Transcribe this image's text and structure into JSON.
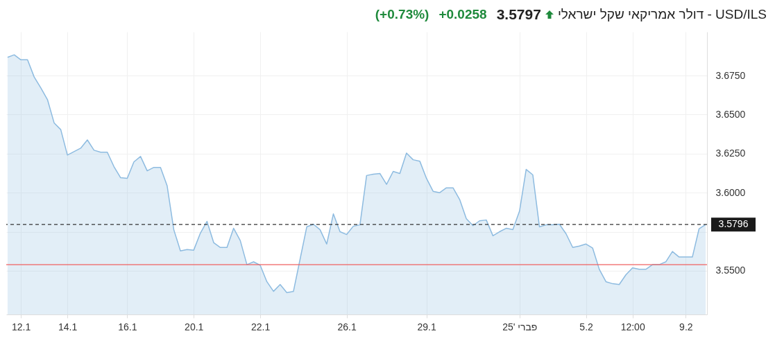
{
  "chart_data": {
    "type": "area",
    "title": "USD/ILS - דולר אמריקאי שקל ישראלי",
    "annotations": [
      "3.5797",
      "+0.0258",
      "(+0.73%)"
    ],
    "categories": [
      null,
      null,
      "12.1",
      null,
      null,
      null,
      null,
      null,
      null,
      "14.1",
      null,
      null,
      null,
      null,
      null,
      null,
      null,
      null,
      "16.1",
      null,
      null,
      null,
      null,
      null,
      null,
      null,
      null,
      null,
      "20.1",
      null,
      null,
      null,
      null,
      null,
      null,
      null,
      null,
      null,
      "22.1",
      null,
      null,
      null,
      null,
      null,
      null,
      null,
      null,
      null,
      null,
      null,
      null,
      "26.1",
      null,
      null,
      null,
      null,
      null,
      null,
      null,
      null,
      null,
      null,
      null,
      "29.1",
      null,
      null,
      null,
      null,
      null,
      null,
      null,
      null,
      null,
      null,
      null,
      null,
      null,
      "פברי '25",
      null,
      null,
      null,
      null,
      null,
      null,
      null,
      null,
      null,
      "5.2",
      null,
      null,
      null,
      null,
      null,
      null,
      "12:00",
      null,
      null,
      null,
      null,
      null,
      null,
      null,
      "9.2",
      null,
      null,
      null
    ],
    "series": [
      {
        "color": "#8dbbe0",
        "values": [
          3.6867,
          3.6883,
          3.6851,
          3.6851,
          3.6741,
          3.6671,
          3.6596,
          3.6447,
          3.6404,
          3.6241,
          3.6263,
          3.6285,
          3.6338,
          3.6272,
          3.6259,
          3.6259,
          3.6167,
          3.6096,
          3.6092,
          3.6197,
          3.6232,
          3.614,
          3.6162,
          3.6162,
          3.6044,
          3.5763,
          3.5627,
          3.5636,
          3.5632,
          3.5741,
          3.5816,
          3.568,
          3.5649,
          3.5649,
          3.5772,
          3.5693,
          3.5539,
          3.5557,
          3.5535,
          3.543,
          3.5368,
          3.5412,
          3.536,
          3.5368,
          3.5575,
          3.5781,
          3.5798,
          3.5763,
          3.5671,
          3.5864,
          3.575,
          3.5732,
          3.5785,
          3.5794,
          3.611,
          3.6118,
          3.6123,
          3.6053,
          3.6136,
          3.6123,
          3.6254,
          3.6211,
          3.6202,
          3.6092,
          3.6009,
          3.6,
          3.6031,
          3.6031,
          3.5956,
          3.5833,
          3.5789,
          3.582,
          3.5825,
          3.5724,
          3.575,
          3.5772,
          3.5763,
          3.5882,
          3.6149,
          3.6114,
          3.5781,
          3.5794,
          3.5794,
          3.5798,
          3.5737,
          3.5649,
          3.5658,
          3.5671,
          3.5645,
          3.5509,
          3.543,
          3.5417,
          3.5412,
          3.5474,
          3.5518,
          3.5509,
          3.5509,
          3.5539,
          3.5539,
          3.5557,
          3.5623,
          3.5588,
          3.5588,
          3.5588,
          3.5768,
          3.5796
        ]
      }
    ],
    "ylim": [
      3.522,
      3.703
    ],
    "yticks": [
      {
        "value": 3.55,
        "label": "3.5500"
      },
      {
        "value": 3.575,
        "label": null
      },
      {
        "value": 3.6,
        "label": "3.6000"
      },
      {
        "value": 3.625,
        "label": "3.6250"
      },
      {
        "value": 3.65,
        "label": "3.6500"
      },
      {
        "value": 3.675,
        "label": "3.6750"
      }
    ],
    "ref_lines": [
      {
        "axis": "y",
        "value": 3.5796,
        "label": "3.5796",
        "color": "#333333",
        "line_style": "dashed"
      },
      {
        "axis": "y",
        "value": 3.5539,
        "color": "#f06060",
        "line_style": "solid"
      }
    ],
    "grid": true
  }
}
